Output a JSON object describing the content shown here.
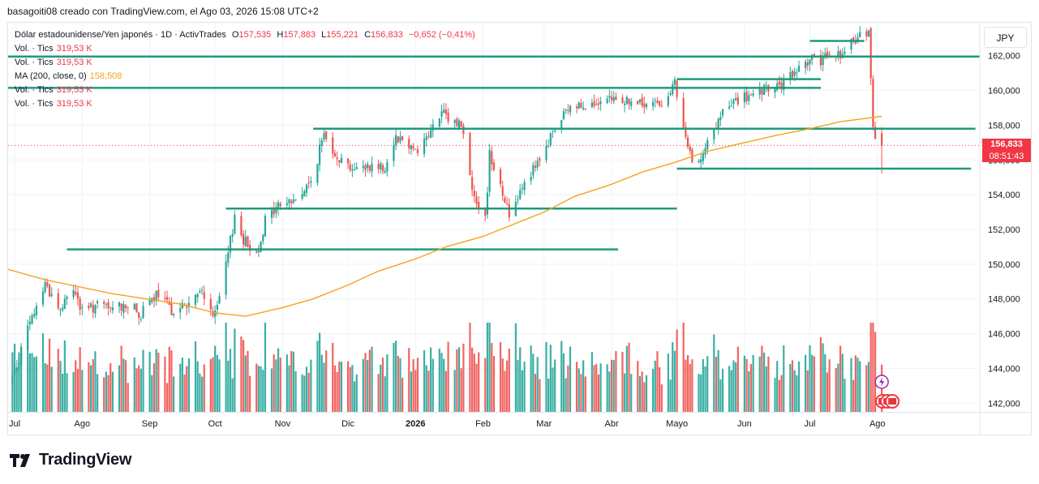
{
  "header": {
    "credit": "basagoiti08 creado con TradingView.com, el Ago 03, 2026 15:08 UTC+2"
  },
  "legend": {
    "symbol": "Dólar estadounidense/Yen japonés · 1D · ActivTrades",
    "open_label": "O",
    "open": "157,535",
    "high_label": "H",
    "high": "157,883",
    "low_label": "L",
    "low": "155,221",
    "close_label": "C",
    "close": "156,833",
    "change": "−0,652 (−0,41%)",
    "vol1_label": "Vol. · Tics",
    "vol1_value": "319,53 K",
    "vol2_label": "Vol. · Tics",
    "vol2_value": "319,53 K",
    "ma_label": "MA (200, close, 0)",
    "ma_value": "158,508",
    "vol3_label": "Vol. · Tics",
    "vol3_value": "319,53 K",
    "vol4_label": "Vol. · Tics",
    "vol4_value": "319,53 K"
  },
  "price_scale": {
    "currency": "JPY",
    "last_price": "156,833",
    "countdown": "08:51:43"
  },
  "footer": {
    "brand": "TradingView"
  },
  "colors": {
    "up": "#26a69a",
    "down": "#ef5350",
    "ma": "#f7a21b",
    "level": "#1e9a7d",
    "grid": "#f0f3fa",
    "text": "#131722"
  },
  "chart_data": {
    "type": "candlestick",
    "y_ticks": [
      142000,
      144000,
      146000,
      148000,
      150000,
      152000,
      154000,
      156000,
      158000,
      160000,
      162000
    ],
    "y_tick_labels": [
      "142,000",
      "144,000",
      "146,000",
      "148,000",
      "150,000",
      "152,000",
      "154,000",
      "156,000",
      "158,000",
      "160,000",
      "162,000"
    ],
    "ylim": [
      141500,
      163900
    ],
    "x_labels": [
      {
        "label": "Jul",
        "date": "2025-07-01",
        "bold": false
      },
      {
        "label": "Ago",
        "date": "2025-08-01",
        "bold": false
      },
      {
        "label": "Sep",
        "date": "2025-09-01",
        "bold": false
      },
      {
        "label": "Oct",
        "date": "2025-10-01",
        "bold": false
      },
      {
        "label": "Nov",
        "date": "2025-11-01",
        "bold": false
      },
      {
        "label": "Dic",
        "date": "2025-12-01",
        "bold": false
      },
      {
        "label": "2026",
        "date": "2026-01-01",
        "bold": true
      },
      {
        "label": "Feb",
        "date": "2026-02-01",
        "bold": false
      },
      {
        "label": "Mar",
        "date": "2026-03-01",
        "bold": false
      },
      {
        "label": "Abr",
        "date": "2026-04-01",
        "bold": false
      },
      {
        "label": "Mayo",
        "date": "2026-05-01",
        "bold": false
      },
      {
        "label": "Jun",
        "date": "2026-06-01",
        "bold": false
      },
      {
        "label": "Jul",
        "date": "2026-07-01",
        "bold": false
      },
      {
        "label": "Ago",
        "date": "2026-08-01",
        "bold": false
      }
    ],
    "xlim": [
      "2025-06-28",
      "2026-09-17"
    ],
    "close_path": [
      [
        "2025-06-30",
        143500
      ],
      [
        "2025-07-07",
        146200
      ],
      [
        "2025-07-15",
        148900
      ],
      [
        "2025-07-22",
        147300
      ],
      [
        "2025-07-28",
        148700
      ],
      [
        "2025-08-01",
        147200
      ],
      [
        "2025-08-07",
        147600
      ],
      [
        "2025-08-14",
        147400
      ],
      [
        "2025-08-21",
        147700
      ],
      [
        "2025-08-28",
        147100
      ],
      [
        "2025-09-04",
        148200
      ],
      [
        "2025-09-11",
        147400
      ],
      [
        "2025-09-18",
        147600
      ],
      [
        "2025-09-25",
        148400
      ],
      [
        "2025-10-01",
        147000
      ],
      [
        "2025-10-06",
        149800
      ],
      [
        "2025-10-10",
        152800
      ],
      [
        "2025-10-14",
        151400
      ],
      [
        "2025-10-20",
        150600
      ],
      [
        "2025-10-24",
        152500
      ],
      [
        "2025-10-31",
        153500
      ],
      [
        "2025-11-07",
        153700
      ],
      [
        "2025-11-14",
        154700
      ],
      [
        "2025-11-20",
        157500
      ],
      [
        "2025-11-27",
        156100
      ],
      [
        "2025-12-05",
        155400
      ],
      [
        "2025-12-11",
        155700
      ],
      [
        "2025-12-18",
        155600
      ],
      [
        "2025-12-23",
        157400
      ],
      [
        "2026-01-02",
        156600
      ],
      [
        "2026-01-09",
        157800
      ],
      [
        "2026-01-13",
        158700
      ],
      [
        "2026-01-16",
        158300
      ],
      [
        "2026-01-22",
        158100
      ],
      [
        "2026-01-27",
        154400
      ],
      [
        "2026-02-02",
        152500
      ],
      [
        "2026-02-04",
        156400
      ],
      [
        "2026-02-09",
        154600
      ],
      [
        "2026-02-13",
        152800
      ],
      [
        "2026-02-20",
        154900
      ],
      [
        "2026-02-27",
        155800
      ],
      [
        "2026-03-05",
        157600
      ],
      [
        "2026-03-12",
        158900
      ],
      [
        "2026-03-19",
        159300
      ],
      [
        "2026-03-26",
        159000
      ],
      [
        "2026-04-02",
        159500
      ],
      [
        "2026-04-09",
        159400
      ],
      [
        "2026-04-16",
        159100
      ],
      [
        "2026-04-23",
        159300
      ],
      [
        "2026-04-30",
        160300
      ],
      [
        "2026-05-04",
        157700
      ],
      [
        "2026-05-08",
        155700
      ],
      [
        "2026-05-15",
        156900
      ],
      [
        "2026-05-22",
        158700
      ],
      [
        "2026-05-29",
        159500
      ],
      [
        "2026-06-05",
        159600
      ],
      [
        "2026-06-12",
        160100
      ],
      [
        "2026-06-19",
        160300
      ],
      [
        "2026-06-26",
        161300
      ],
      [
        "2026-07-02",
        162000
      ],
      [
        "2026-07-06",
        161300
      ],
      [
        "2026-07-10",
        162400
      ],
      [
        "2026-07-16",
        161900
      ],
      [
        "2026-07-20",
        162700
      ],
      [
        "2026-07-24",
        163200
      ],
      [
        "2026-07-28",
        163300
      ],
      [
        "2026-07-30",
        158100
      ],
      [
        "2026-07-31",
        157500
      ],
      [
        "2026-08-03",
        156833
      ]
    ],
    "ma_path": [
      [
        "2025-06-28",
        149700
      ],
      [
        "2025-07-15",
        149100
      ],
      [
        "2025-08-15",
        148300
      ],
      [
        "2025-09-15",
        147700
      ],
      [
        "2025-10-01",
        147200
      ],
      [
        "2025-10-15",
        147000
      ],
      [
        "2025-11-01",
        147500
      ],
      [
        "2025-11-15",
        148000
      ],
      [
        "2025-12-01",
        148800
      ],
      [
        "2025-12-15",
        149600
      ],
      [
        "2026-01-01",
        150300
      ],
      [
        "2026-01-15",
        151000
      ],
      [
        "2026-02-01",
        151600
      ],
      [
        "2026-02-15",
        152300
      ],
      [
        "2026-03-01",
        153000
      ],
      [
        "2026-03-15",
        153900
      ],
      [
        "2026-04-01",
        154600
      ],
      [
        "2026-04-15",
        155300
      ],
      [
        "2026-05-01",
        155900
      ],
      [
        "2026-05-15",
        156500
      ],
      [
        "2026-06-01",
        157000
      ],
      [
        "2026-06-15",
        157400
      ],
      [
        "2026-07-01",
        157800
      ],
      [
        "2026-07-15",
        158200
      ],
      [
        "2026-08-03",
        158508
      ]
    ],
    "volume_scale_max": 420,
    "levels": [
      {
        "price": 161950,
        "from": "2025-06-28",
        "to": "2026-09-17"
      },
      {
        "price": 160150,
        "from": "2025-06-28",
        "to": "2026-07-06"
      },
      {
        "price": 160650,
        "from": "2026-05-01",
        "to": "2026-07-06"
      },
      {
        "price": 162850,
        "from": "2026-07-01",
        "to": "2026-07-26"
      },
      {
        "price": 157800,
        "from": "2025-11-15",
        "to": "2026-09-15"
      },
      {
        "price": 155500,
        "from": "2026-05-01",
        "to": "2026-09-13"
      },
      {
        "price": 153200,
        "from": "2025-10-06",
        "to": "2026-05-01"
      },
      {
        "price": 150850,
        "from": "2025-07-25",
        "to": "2026-04-04"
      }
    ],
    "grid": true
  }
}
